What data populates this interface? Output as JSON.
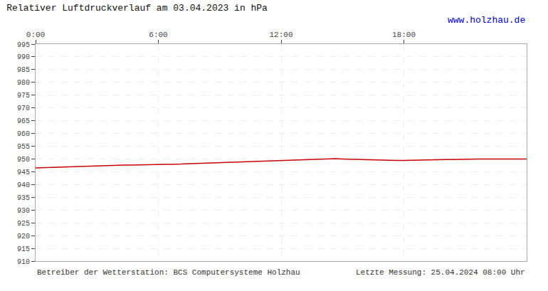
{
  "chart_data": {
    "type": "line",
    "title": "Relativer Luftdruckverlauf am 03.04.2023 in hPa",
    "annotations": [
      {
        "text": "www.holzhau.de",
        "color": "#0000cc"
      },
      {
        "text": "Betreiber der Wetterstation: BCS Computersysteme Holzhau",
        "color": "#333333"
      },
      {
        "text": "Letzte Messung: 25.04.2024 08:00 Uhr",
        "color": "#333333"
      }
    ],
    "x": [
      0,
      20,
      40,
      60,
      80,
      100,
      120,
      140,
      160,
      180,
      200,
      220,
      240,
      260,
      280,
      300,
      320,
      340,
      360,
      380,
      400,
      420,
      440,
      460,
      480,
      500,
      520,
      540,
      560,
      580,
      600,
      620,
      640,
      660,
      680,
      700,
      720,
      740,
      760,
      780,
      800,
      820,
      840,
      860,
      880,
      900,
      920,
      940,
      960,
      980,
      1000,
      1020,
      1040,
      1060,
      1080,
      1100,
      1120,
      1140,
      1160,
      1180,
      1200,
      1220,
      1240,
      1260,
      1280,
      1300,
      1320,
      1340,
      1360,
      1380,
      1400,
      1420,
      1440
    ],
    "values": [
      946.5,
      946.6,
      946.7,
      946.8,
      946.9,
      947.0,
      947.1,
      947.2,
      947.3,
      947.3,
      947.4,
      947.5,
      947.5,
      947.6,
      947.6,
      947.7,
      947.7,
      947.8,
      947.8,
      947.9,
      947.9,
      948.0,
      948.1,
      948.2,
      948.3,
      948.4,
      948.5,
      948.6,
      948.7,
      948.8,
      948.9,
      949.0,
      949.1,
      949.2,
      949.3,
      949.4,
      949.5,
      949.6,
      949.7,
      949.8,
      949.9,
      950.0,
      950.0,
      950.1,
      950.1,
      950.0,
      949.9,
      949.8,
      949.7,
      949.7,
      949.6,
      949.5,
      949.5,
      949.4,
      949.4,
      949.5,
      949.6,
      949.6,
      949.7,
      949.7,
      949.8,
      949.8,
      949.9,
      949.9,
      950.0,
      950.0,
      950.0,
      950.0,
      950.0,
      950.0,
      950.0,
      950.0,
      950.0
    ],
    "color": "#cc0000",
    "xlim": [
      0,
      1440
    ],
    "xticks": [
      {
        "value": 0,
        "label": "0:00"
      },
      {
        "value": 360,
        "label": "6:00"
      },
      {
        "value": 720,
        "label": "12:00"
      },
      {
        "value": 1080,
        "label": "18:00"
      }
    ],
    "ylim": [
      910,
      995
    ],
    "yticks": [
      910,
      915,
      920,
      925,
      930,
      935,
      940,
      945,
      950,
      955,
      960,
      965,
      970,
      975,
      980,
      985,
      990,
      995
    ],
    "grid": true
  }
}
